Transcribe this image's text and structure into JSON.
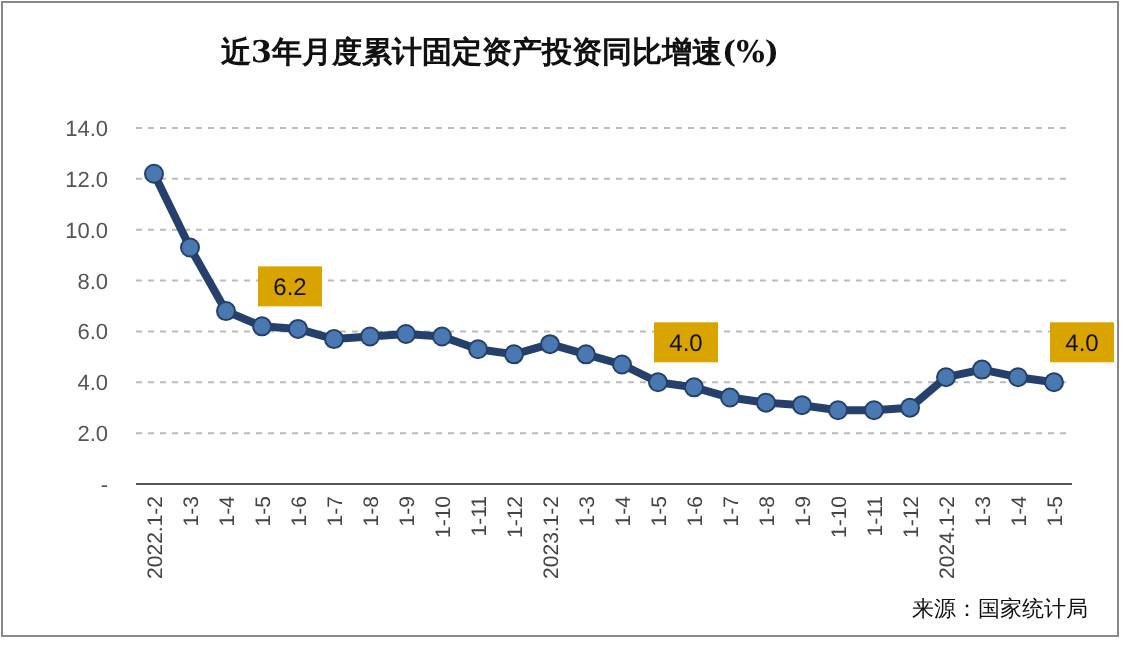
{
  "chart_data": {
    "type": "line",
    "title": "近3年月度累计固定资产投资同比增速(%)",
    "categories": [
      "2022.1-2",
      "1-3",
      "1-4",
      "1-5",
      "1-6",
      "1-7",
      "1-8",
      "1-9",
      "1-10",
      "1-11",
      "1-12",
      "2023.1-2",
      "1-3",
      "1-4",
      "1-5",
      "1-6",
      "1-7",
      "1-8",
      "1-9",
      "1-10",
      "1-11",
      "1-12",
      "2024.1-2",
      "1-3",
      "1-4",
      "1-5"
    ],
    "series": [
      {
        "color": "#24406b",
        "values": [
          12.2,
          9.3,
          6.8,
          6.2,
          6.1,
          5.7,
          5.8,
          5.9,
          5.8,
          5.3,
          5.1,
          5.5,
          5.1,
          4.7,
          4.0,
          3.8,
          3.4,
          3.2,
          3.1,
          2.9,
          2.9,
          3.0,
          4.2,
          4.5,
          4.2,
          4.0
        ],
        "value_labels": [
          null,
          null,
          null,
          "6.2",
          null,
          null,
          null,
          null,
          null,
          null,
          null,
          null,
          null,
          null,
          "4.0",
          null,
          null,
          null,
          null,
          null,
          null,
          null,
          null,
          null,
          null,
          "4.0"
        ]
      }
    ],
    "ylim": [
      0,
      14
    ],
    "yticks": [
      {
        "value": 0,
        "label": "-"
      },
      {
        "value": 2,
        "label": "2.0"
      },
      {
        "value": 4,
        "label": "4.0"
      },
      {
        "value": 6,
        "label": "6.0"
      },
      {
        "value": 8,
        "label": "8.0"
      },
      {
        "value": 10,
        "label": "10.0"
      },
      {
        "value": 12,
        "label": "12.0"
      },
      {
        "value": 14,
        "label": "14.0"
      }
    ],
    "grid": "y",
    "marker": "circle",
    "line_style": "solid",
    "annotations": [
      "来源：国家统计局"
    ]
  }
}
